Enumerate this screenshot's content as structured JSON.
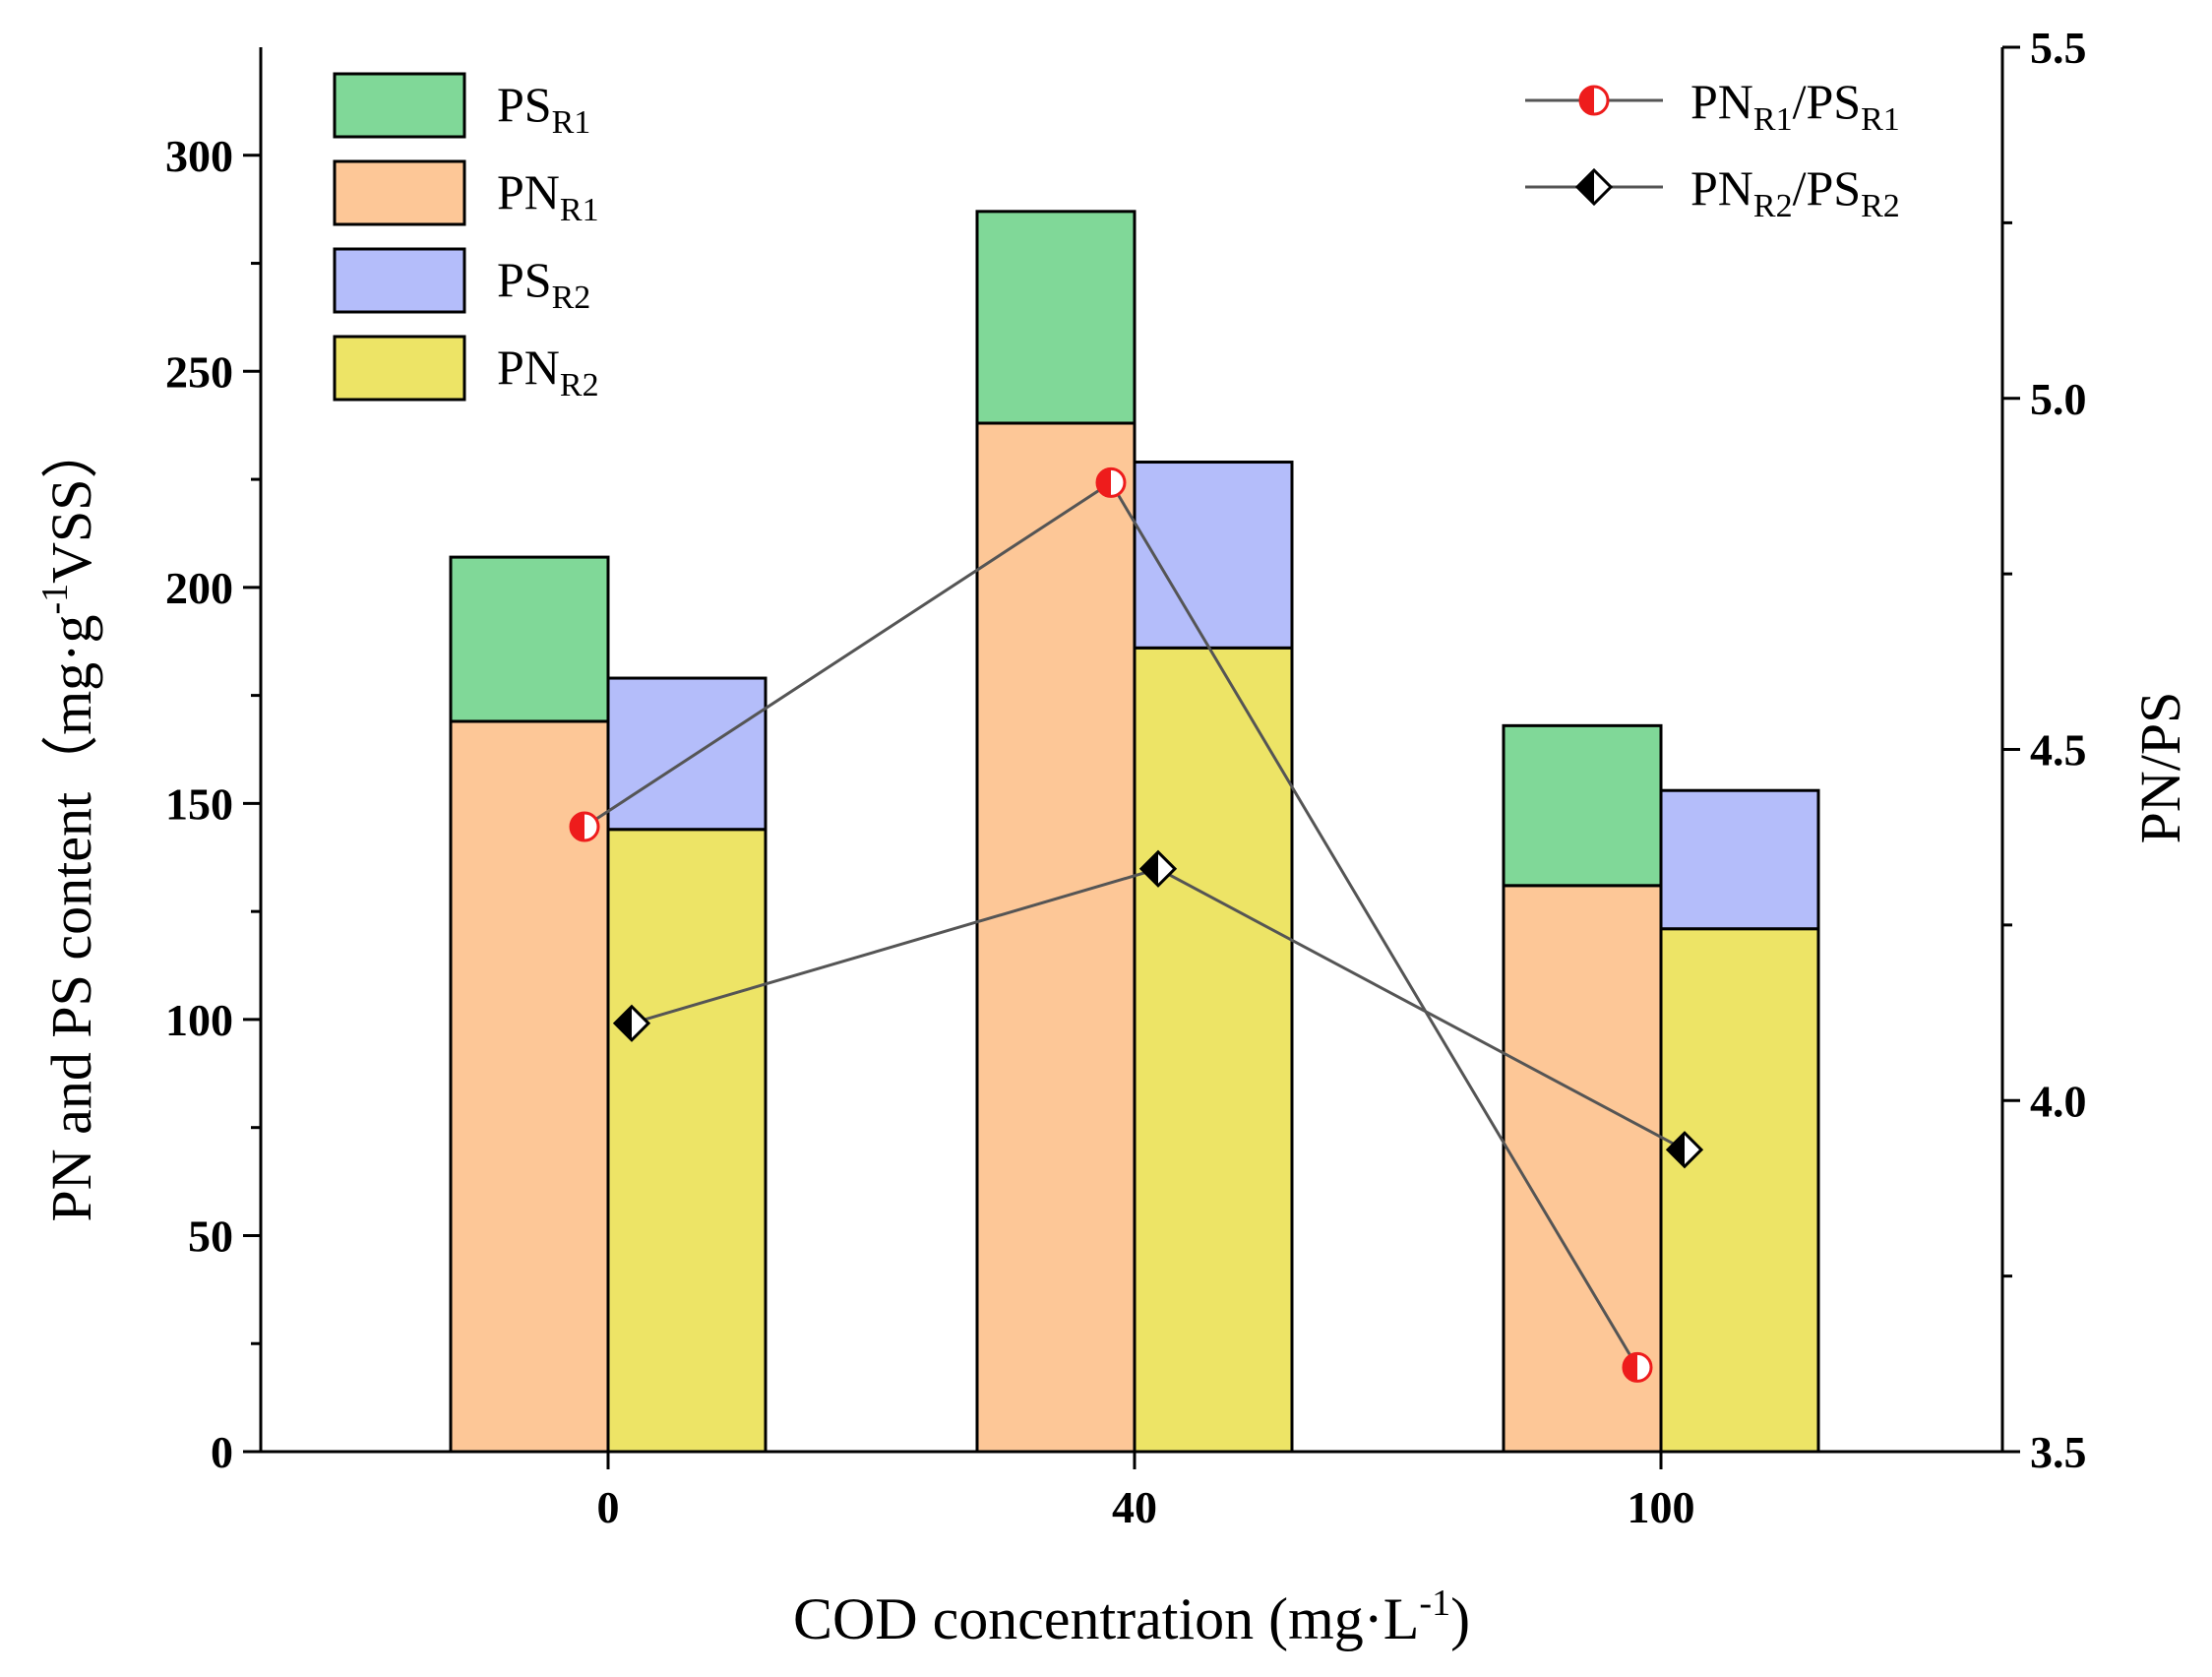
{
  "chart_data": {
    "type": "bar",
    "stacked": true,
    "xlabel": "COD concentration (mg·L",
    "xlabel_sup": "-1",
    "xlabel_end": ")",
    "ylabel": "PN and PS content（mg·g",
    "ylabel_sup": "-1",
    "ylabel_end": "VSS）",
    "y2label": "PN/PS",
    "categories": [
      "0",
      "40",
      "100"
    ],
    "ylim": [
      0,
      325
    ],
    "yticks": [
      "0",
      "50",
      "100",
      "150",
      "200",
      "250",
      "300"
    ],
    "y2lim": [
      3.5,
      5.5
    ],
    "y2ticks": [
      "3.5",
      "4.0",
      "4.5",
      "5.0",
      "5.5"
    ],
    "bar_groups": [
      {
        "name": "R1",
        "offset": -0.5,
        "segments": [
          {
            "name": "PN",
            "sub": "R1",
            "color": "#fdc797",
            "values": [
              169,
              238,
              131
            ]
          },
          {
            "name": "PS",
            "sub": "R1",
            "color": "#80d898",
            "values": [
              38,
              49,
              37
            ]
          }
        ]
      },
      {
        "name": "R2",
        "offset": 0.5,
        "segments": [
          {
            "name": "PN",
            "sub": "R2",
            "color": "#ede466",
            "values": [
              144,
              186,
              121
            ]
          },
          {
            "name": "PS",
            "sub": "R2",
            "color": "#b4bdfa",
            "values": [
              35,
              43,
              32
            ]
          }
        ]
      }
    ],
    "legend_bars": [
      {
        "name": "PS",
        "sub": "R1",
        "color": "#80d898"
      },
      {
        "name": "PN",
        "sub": "R1",
        "color": "#fdc797"
      },
      {
        "name": "PS",
        "sub": "R2",
        "color": "#b4bdfa"
      },
      {
        "name": "PN",
        "sub": "R2",
        "color": "#ede466"
      }
    ],
    "lines": [
      {
        "label_a": "PN",
        "sub_a": "R1",
        "label_b": "/PS",
        "sub_b": "R1",
        "marker": "half-circle",
        "color": "#ee1c1c",
        "offset": -0.15,
        "values": [
          4.39,
          4.88,
          3.62
        ]
      },
      {
        "label_a": "PN",
        "sub_a": "R2",
        "label_b": "/PS",
        "sub_b": "R2",
        "marker": "half-diamond",
        "color": "#000000",
        "offset": 0.15,
        "values": [
          4.11,
          4.33,
          3.93
        ]
      }
    ]
  }
}
